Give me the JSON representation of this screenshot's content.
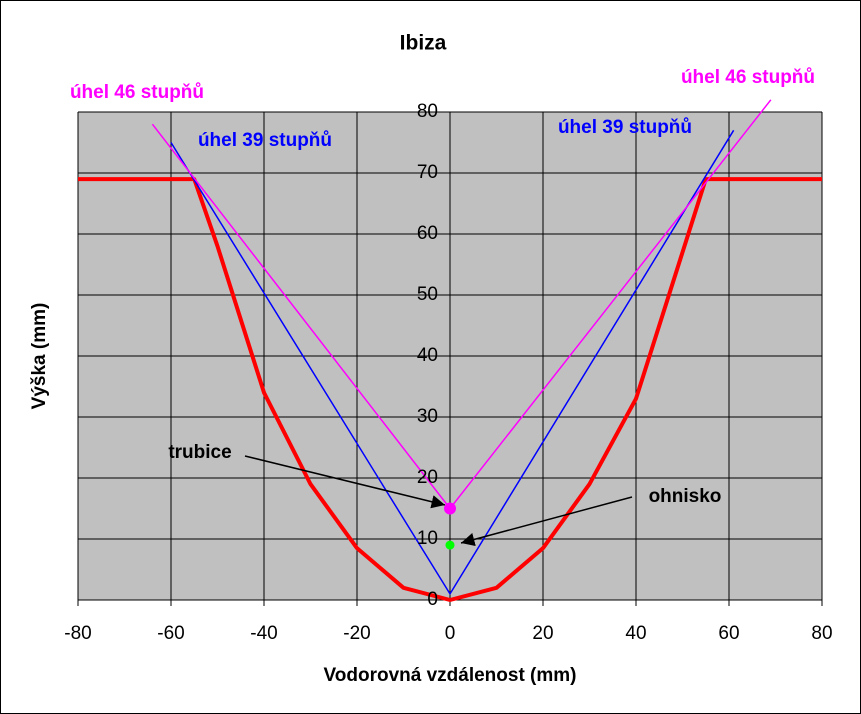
{
  "chart_data": {
    "type": "line",
    "title": "Ibiza",
    "x_label": "Vodorovná vzdálenost (mm)",
    "y_label": "Výška (mm)",
    "xlim": [
      -80,
      80
    ],
    "ylim": [
      0,
      80
    ],
    "xticks": [
      -80,
      -60,
      -40,
      -20,
      0,
      20,
      40,
      60,
      80
    ],
    "yticks": [
      0,
      10,
      20,
      30,
      40,
      50,
      60,
      70,
      80
    ],
    "grid": true,
    "series": [
      {
        "color": "#ff0000",
        "x": [
          -80,
          -55,
          -50,
          -40,
          -30,
          -20,
          -10,
          0,
          10,
          20,
          30,
          40,
          50,
          55,
          80
        ],
        "values": [
          69,
          69,
          58,
          34,
          19,
          8.5,
          2,
          0,
          2,
          8.5,
          19,
          33,
          57,
          69,
          69
        ]
      },
      {
        "color": "#0000ff",
        "x": [
          -60,
          0,
          61
        ],
        "values": [
          75,
          1,
          77
        ]
      },
      {
        "color": "#ff00ff",
        "x": [
          -64,
          0,
          69
        ],
        "values": [
          78,
          15,
          82
        ]
      }
    ],
    "points": [
      {
        "x": 0,
        "y": 15,
        "color": "#ff00ff"
      },
      {
        "x": 0,
        "y": 9,
        "color": "#00ff00"
      }
    ],
    "annotations": [
      {
        "text": "úhel 46 stupňů",
        "color": "#ff00ff"
      },
      {
        "text": "úhel 46 stupňů",
        "color": "#ff00ff"
      },
      {
        "text": "úhel 39 stupňů",
        "color": "#0000ff"
      },
      {
        "text": "úhel 39 stupňů",
        "color": "#0000ff"
      },
      {
        "text": "trubice",
        "color": "#000000"
      },
      {
        "text": "ohnisko",
        "color": "#000000"
      }
    ]
  }
}
